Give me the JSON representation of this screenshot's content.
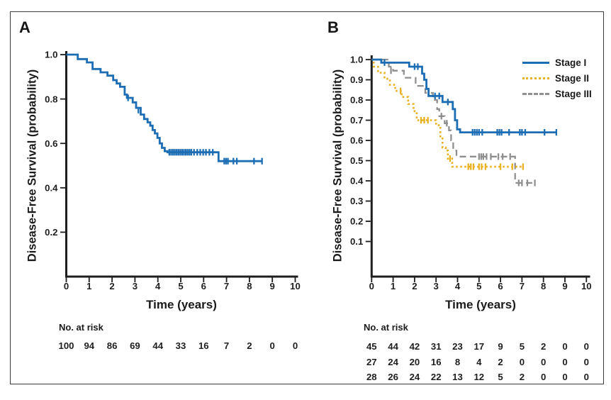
{
  "panels": [
    {
      "label": "A"
    },
    {
      "label": "B"
    }
  ],
  "axes": {
    "x_label": "Time (years)",
    "y_label": "Disease-Free Survival (probability)"
  },
  "risk_header": "No. at risk",
  "colors": {
    "stage1_blue": "#1d6db4",
    "stage2_gold": "#e9b021",
    "stage3_gray": "#8f8f8f",
    "axis_black": "#1e1e1e",
    "frame_gray": "#3c3c3c"
  },
  "chart_data": [
    {
      "type": "line",
      "panel": "A",
      "title": "",
      "xlabel": "Time (years)",
      "ylabel": "Disease-Free Survival (probability)",
      "xlim": [
        0,
        10
      ],
      "ylim": [
        0,
        1.0
      ],
      "xticks": [
        0,
        1,
        2,
        3,
        4,
        5,
        6,
        7,
        8,
        9,
        10
      ],
      "yticks": [
        0.2,
        0.4,
        0.6,
        0.8,
        1.0
      ],
      "grid": false,
      "legend": null,
      "series": [
        {
          "color": "#1d6db4",
          "style": "solid",
          "steps": [
            [
              0,
              1.0
            ],
            [
              0.5,
              0.98
            ],
            [
              0.9,
              0.965
            ],
            [
              1.15,
              0.935
            ],
            [
              1.5,
              0.92
            ],
            [
              1.8,
              0.905
            ],
            [
              2.05,
              0.885
            ],
            [
              2.2,
              0.87
            ],
            [
              2.35,
              0.855
            ],
            [
              2.55,
              0.82
            ],
            [
              2.65,
              0.805
            ],
            [
              2.9,
              0.785
            ],
            [
              3.05,
              0.76
            ],
            [
              3.25,
              0.73
            ],
            [
              3.4,
              0.71
            ],
            [
              3.55,
              0.695
            ],
            [
              3.67,
              0.68
            ],
            [
              3.77,
              0.66
            ],
            [
              3.87,
              0.645
            ],
            [
              3.98,
              0.625
            ],
            [
              4.08,
              0.6
            ],
            [
              4.18,
              0.58
            ],
            [
              4.3,
              0.565
            ],
            [
              4.42,
              0.56
            ],
            [
              6.65,
              0.52
            ]
          ],
          "end": 8.55,
          "censors": [
            [
              2.7,
              0.805
            ],
            [
              3.15,
              0.75
            ],
            [
              4.5,
              0.56
            ],
            [
              4.58,
              0.56
            ],
            [
              4.66,
              0.56
            ],
            [
              4.74,
              0.56
            ],
            [
              4.82,
              0.56
            ],
            [
              4.9,
              0.56
            ],
            [
              4.98,
              0.56
            ],
            [
              5.06,
              0.56
            ],
            [
              5.14,
              0.56
            ],
            [
              5.22,
              0.56
            ],
            [
              5.3,
              0.56
            ],
            [
              5.38,
              0.56
            ],
            [
              5.46,
              0.56
            ],
            [
              5.58,
              0.56
            ],
            [
              5.72,
              0.56
            ],
            [
              5.85,
              0.56
            ],
            [
              5.98,
              0.56
            ],
            [
              6.1,
              0.56
            ],
            [
              6.25,
              0.56
            ],
            [
              6.4,
              0.56
            ],
            [
              6.9,
              0.52
            ],
            [
              6.98,
              0.52
            ],
            [
              7.06,
              0.52
            ],
            [
              7.3,
              0.52
            ],
            [
              7.45,
              0.52
            ],
            [
              8.2,
              0.52
            ],
            [
              8.55,
              0.52
            ]
          ],
          "at_risk": [
            100,
            94,
            86,
            69,
            44,
            33,
            16,
            7,
            2,
            0,
            0
          ]
        }
      ]
    },
    {
      "type": "line",
      "panel": "B",
      "title": "",
      "xlabel": "Time (years)",
      "ylabel": "Disease-Free Survival (probability)",
      "xlim": [
        0,
        10
      ],
      "ylim": [
        0,
        1.0
      ],
      "xticks": [
        0,
        1,
        2,
        3,
        4,
        5,
        6,
        7,
        8,
        9,
        10
      ],
      "yticks": [
        0.1,
        0.2,
        0.3,
        0.4,
        0.5,
        0.6,
        0.7,
        0.8,
        0.9,
        1.0
      ],
      "grid": false,
      "legend": {
        "position": "top-right",
        "entries": [
          "Stage I",
          "Stage II",
          "Stage III"
        ]
      },
      "series": [
        {
          "name": "Stage I",
          "color": "#1d6db4",
          "style": "solid",
          "steps": [
            [
              0,
              1.0
            ],
            [
              0.45,
              0.985
            ],
            [
              1.75,
              0.965
            ],
            [
              2.35,
              0.93
            ],
            [
              2.45,
              0.9
            ],
            [
              2.55,
              0.855
            ],
            [
              2.65,
              0.82
            ],
            [
              3.3,
              0.79
            ],
            [
              3.78,
              0.755
            ],
            [
              3.88,
              0.7
            ],
            [
              3.98,
              0.655
            ],
            [
              4.12,
              0.64
            ]
          ],
          "end": 8.6,
          "censors": [
            [
              0.6,
              0.985
            ],
            [
              2.0,
              0.965
            ],
            [
              2.15,
              0.965
            ],
            [
              2.95,
              0.82
            ],
            [
              3.15,
              0.82
            ],
            [
              3.55,
              0.79
            ],
            [
              4.7,
              0.64
            ],
            [
              4.8,
              0.64
            ],
            [
              4.9,
              0.64
            ],
            [
              5.0,
              0.64
            ],
            [
              5.15,
              0.64
            ],
            [
              5.85,
              0.64
            ],
            [
              5.95,
              0.64
            ],
            [
              6.05,
              0.64
            ],
            [
              6.4,
              0.64
            ],
            [
              6.9,
              0.64
            ],
            [
              7.0,
              0.64
            ],
            [
              7.15,
              0.64
            ],
            [
              8.05,
              0.64
            ],
            [
              8.6,
              0.64
            ]
          ],
          "at_risk": [
            45,
            44,
            42,
            31,
            23,
            17,
            9,
            5,
            2,
            0,
            0
          ]
        },
        {
          "name": "Stage II",
          "color": "#e9b021",
          "style": "dotted",
          "steps": [
            [
              0,
              1.0
            ],
            [
              0.1,
              0.965
            ],
            [
              0.3,
              0.935
            ],
            [
              0.6,
              0.905
            ],
            [
              0.85,
              0.875
            ],
            [
              1.1,
              0.845
            ],
            [
              1.4,
              0.815
            ],
            [
              1.7,
              0.78
            ],
            [
              1.95,
              0.745
            ],
            [
              2.1,
              0.7
            ],
            [
              3.0,
              0.675
            ],
            [
              3.2,
              0.62
            ],
            [
              3.3,
              0.565
            ],
            [
              3.45,
              0.55
            ],
            [
              3.55,
              0.51
            ],
            [
              3.75,
              0.47
            ]
          ],
          "end": 7.05,
          "censors": [
            [
              1.35,
              0.845
            ],
            [
              2.3,
              0.7
            ],
            [
              2.45,
              0.7
            ],
            [
              2.62,
              0.7
            ],
            [
              3.65,
              0.51
            ],
            [
              4.5,
              0.47
            ],
            [
              4.62,
              0.47
            ],
            [
              4.74,
              0.47
            ],
            [
              5.0,
              0.47
            ],
            [
              5.12,
              0.47
            ],
            [
              5.3,
              0.47
            ],
            [
              6.0,
              0.47
            ],
            [
              6.55,
              0.47
            ],
            [
              7.05,
              0.47
            ]
          ],
          "at_risk": [
            27,
            24,
            20,
            16,
            8,
            4,
            2,
            0,
            0,
            0,
            0
          ]
        },
        {
          "name": "Stage III",
          "color": "#8f8f8f",
          "style": "dashed",
          "steps": [
            [
              0,
              1.0
            ],
            [
              0.8,
              0.965
            ],
            [
              1.0,
              0.945
            ],
            [
              1.5,
              0.91
            ],
            [
              2.05,
              0.87
            ],
            [
              2.5,
              0.835
            ],
            [
              2.85,
              0.8
            ],
            [
              3.05,
              0.755
            ],
            [
              3.15,
              0.72
            ],
            [
              3.4,
              0.685
            ],
            [
              3.6,
              0.65
            ],
            [
              3.7,
              0.6
            ],
            [
              3.8,
              0.55
            ],
            [
              3.95,
              0.52
            ],
            [
              6.68,
              0.39
            ]
          ],
          "end": 7.6,
          "censors": [
            [
              0.9,
              0.945
            ],
            [
              3.25,
              0.72
            ],
            [
              3.5,
              0.685
            ],
            [
              5.0,
              0.52
            ],
            [
              5.1,
              0.52
            ],
            [
              5.2,
              0.52
            ],
            [
              5.35,
              0.52
            ],
            [
              5.55,
              0.52
            ],
            [
              5.9,
              0.52
            ],
            [
              6.1,
              0.52
            ],
            [
              6.45,
              0.52
            ],
            [
              6.85,
              0.39
            ],
            [
              7.0,
              0.39
            ],
            [
              7.25,
              0.39
            ],
            [
              7.6,
              0.39
            ]
          ],
          "at_risk": [
            28,
            26,
            24,
            22,
            13,
            12,
            5,
            2,
            0,
            0,
            0
          ]
        }
      ]
    }
  ]
}
